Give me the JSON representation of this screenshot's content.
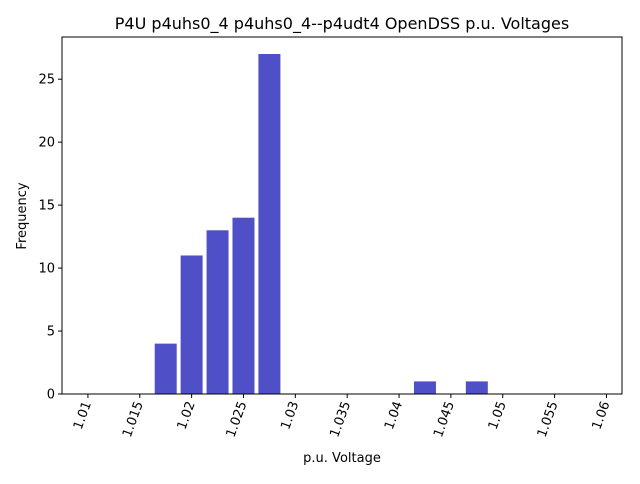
{
  "chart_data": {
    "type": "bar",
    "title": "P4U p4uhs0_4 p4uhs0_4--p4udt4 OpenDSS p.u. Voltages",
    "xlabel": "p.u. Voltage",
    "ylabel": "Frequency",
    "xlim": [
      1.0075,
      1.0615
    ],
    "ylim": [
      0,
      28.35
    ],
    "xticks": [
      "1.01",
      "1.015",
      "1.02",
      "1.025",
      "1.03",
      "1.035",
      "1.04",
      "1.045",
      "1.05",
      "1.055",
      "1.06"
    ],
    "yticks": [
      "0",
      "5",
      "10",
      "15",
      "20",
      "25"
    ],
    "bars": [
      {
        "x": 1.0175,
        "value": 4
      },
      {
        "x": 1.02,
        "value": 11
      },
      {
        "x": 1.0225,
        "value": 13
      },
      {
        "x": 1.025,
        "value": 14
      },
      {
        "x": 1.0275,
        "value": 27
      },
      {
        "x": 1.0425,
        "value": 1
      },
      {
        "x": 1.0475,
        "value": 1
      }
    ],
    "bar_width": 0.00212,
    "color": "#4f4fc7",
    "grid": false,
    "legend": "none"
  }
}
